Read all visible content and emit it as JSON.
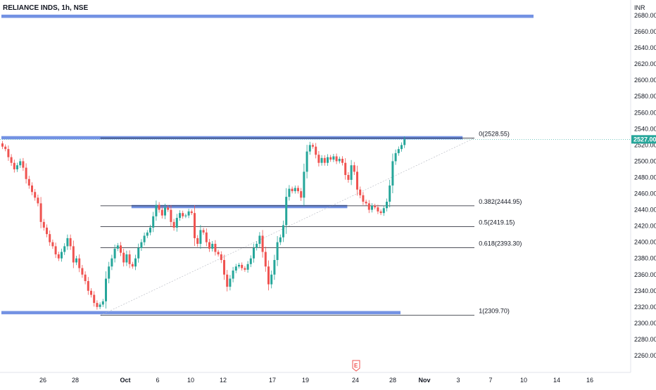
{
  "header": {
    "title": "RELIANCE INDS, 1h, NSE"
  },
  "price_axis": {
    "currency": "INR",
    "ticks": [
      "2680.00",
      "2660.00",
      "2640.00",
      "2620.00",
      "2600.00",
      "2580.00",
      "2560.00",
      "2540.00",
      "2520.00",
      "2500.00",
      "2480.00",
      "2460.00",
      "2440.00",
      "2420.00",
      "2400.00",
      "2380.00",
      "2360.00",
      "2340.00",
      "2320.00",
      "2300.00",
      "2280.00",
      "2260.00"
    ],
    "current_price_label": "2527.00"
  },
  "time_axis": {
    "ticks": [
      "26",
      "28",
      "Oct",
      "6",
      "10",
      "12",
      "17",
      "19",
      "24",
      "28",
      "Nov",
      "3",
      "7",
      "10",
      "14",
      "16"
    ]
  },
  "earnings_marker": {
    "label": "E"
  },
  "fib_levels": [
    {
      "label": "0(2528.55)",
      "price": 2528.55
    },
    {
      "label": "0.382(2444.95)",
      "price": 2444.95
    },
    {
      "label": "0.5(2419.15)",
      "price": 2419.15
    },
    {
      "label": "0.618(2393.30)",
      "price": 2393.3
    },
    {
      "label": "1(2309.70)",
      "price": 2309.7
    }
  ],
  "zones": [
    {
      "name": "top-resistance-zone",
      "price_low": 2677,
      "price_high": 2681,
      "start_index": 0,
      "end_index": 180
    },
    {
      "name": "upper-resistance-zone",
      "price_low": 2527,
      "price_high": 2531,
      "start_index": 0,
      "end_index": 156
    },
    {
      "name": "mid-support-zone",
      "price_low": 2442,
      "price_high": 2446,
      "start_index": 44,
      "end_index": 117
    },
    {
      "name": "bottom-support-zone",
      "price_low": 2311,
      "price_high": 2315,
      "start_index": 0,
      "end_index": 135
    }
  ],
  "chart_data": {
    "type": "candlestick",
    "title": "RELIANCE INDS, 1h, NSE",
    "ylim": [
      2250,
      2690
    ],
    "current_price": 2527.0,
    "colors": {
      "up": "#26a69a",
      "down": "#ef5350",
      "zone": "#5b7fde",
      "fib_line": "#131722",
      "current": "#26a69a"
    },
    "close": [
      2518,
      2515,
      2505,
      2498,
      2490,
      2495,
      2500,
      2492,
      2478,
      2470,
      2462,
      2455,
      2448,
      2425,
      2418,
      2410,
      2400,
      2395,
      2385,
      2380,
      2388,
      2395,
      2405,
      2395,
      2375,
      2380,
      2368,
      2360,
      2352,
      2340,
      2335,
      2325,
      2320,
      2323,
      2327,
      2355,
      2370,
      2380,
      2392,
      2396,
      2387,
      2375,
      2385,
      2373,
      2370,
      2380,
      2393,
      2400,
      2408,
      2412,
      2418,
      2432,
      2446,
      2440,
      2433,
      2443,
      2440,
      2425,
      2418,
      2430,
      2436,
      2432,
      2433,
      2438,
      2436,
      2405,
      2398,
      2415,
      2412,
      2400,
      2392,
      2398,
      2388,
      2385,
      2378,
      2360,
      2345,
      2355,
      2365,
      2370,
      2372,
      2368,
      2366,
      2373,
      2380,
      2393,
      2398,
      2408,
      2388,
      2370,
      2348,
      2360,
      2378,
      2400,
      2406,
      2421,
      2456,
      2466,
      2463,
      2467,
      2463,
      2455,
      2487,
      2512,
      2520,
      2518,
      2508,
      2498,
      2504,
      2498,
      2505,
      2502,
      2506,
      2500,
      2503,
      2498,
      2483,
      2477,
      2495,
      2487,
      2465,
      2458,
      2450,
      2448,
      2440,
      2445,
      2443,
      2438,
      2436,
      2442,
      2450,
      2470,
      2500,
      2510,
      2515,
      2520,
      2527
    ]
  }
}
